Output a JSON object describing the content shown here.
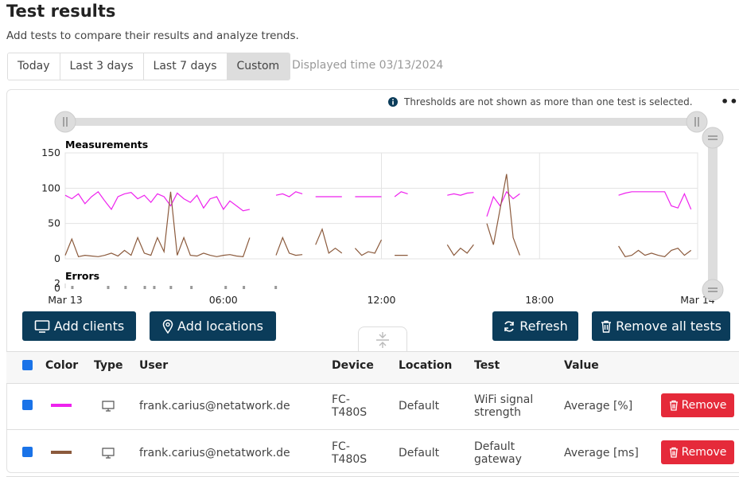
{
  "header": {
    "title": "Test results",
    "subtitle": "Add tests to compare their results and analyze trends."
  },
  "tabs": [
    "Today",
    "Last 3 days",
    "Last 7 days",
    "Custom"
  ],
  "active_tab": 3,
  "displayed_time": "Displayed time 03/13/2024",
  "notice": "Thresholds are not shown as more than one test is selected.",
  "chart_data": [
    {
      "type": "line",
      "title": "Measurements",
      "x": [
        0,
        0.25,
        0.5,
        0.75,
        1,
        1.25,
        1.5,
        1.75,
        2,
        2.25,
        2.5,
        2.75,
        3,
        3.25,
        3.5,
        3.75,
        4,
        4.25,
        4.5,
        4.75,
        5,
        5.25,
        5.5,
        5.75,
        6,
        6.25,
        6.5,
        6.75,
        7,
        7.25,
        7.5,
        7.75,
        8,
        8.25,
        8.5,
        8.75,
        9,
        9.25,
        9.5,
        9.75,
        10,
        10.25,
        10.5,
        10.75,
        11,
        11.25,
        11.5,
        11.75,
        12,
        12.25,
        12.5,
        12.75,
        13,
        13.25,
        13.5,
        13.75,
        14,
        14.25,
        14.5,
        14.75,
        15,
        15.25,
        15.5,
        15.75,
        16,
        16.25,
        16.5,
        16.75,
        17,
        17.25,
        17.5,
        17.75,
        18,
        18.25,
        18.5,
        18.75,
        19,
        19.25,
        19.5,
        19.75,
        20,
        20.25,
        20.5,
        20.75,
        21,
        21.25,
        21.5,
        21.75,
        22,
        22.25,
        22.5,
        22.75,
        23,
        23.25,
        23.5,
        23.75,
        24
      ],
      "series": [
        {
          "name": "WiFi signal strength",
          "color": "#ee22ee",
          "values": [
            90,
            85,
            92,
            78,
            88,
            95,
            82,
            70,
            88,
            92,
            94,
            85,
            90,
            80,
            92,
            88,
            75,
            93,
            85,
            80,
            90,
            72,
            85,
            88,
            70,
            82,
            75,
            68,
            70,
            null,
            null,
            null,
            90,
            92,
            88,
            95,
            92,
            null,
            88,
            88,
            88,
            88,
            88,
            null,
            88,
            88,
            88,
            88,
            88,
            null,
            88,
            95,
            92,
            null,
            null,
            null,
            null,
            null,
            90,
            92,
            90,
            93,
            94,
            null,
            60,
            88,
            75,
            95,
            85,
            92,
            null,
            null,
            null,
            null,
            null,
            null,
            null,
            null,
            null,
            null,
            null,
            null,
            null,
            null,
            90,
            93,
            95,
            95,
            95,
            95,
            95,
            95,
            75,
            72,
            92,
            70,
            null
          ]
        },
        {
          "name": "Default gateway",
          "color": "#8b5a3c",
          "values": [
            5,
            28,
            3,
            5,
            4,
            3,
            5,
            8,
            4,
            12,
            5,
            30,
            8,
            5,
            30,
            10,
            95,
            5,
            30,
            5,
            4,
            8,
            5,
            3,
            5,
            6,
            4,
            3,
            30,
            null,
            null,
            null,
            5,
            30,
            8,
            5,
            6,
            null,
            20,
            42,
            8,
            15,
            8,
            null,
            15,
            5,
            10,
            8,
            27,
            null,
            5,
            5,
            5,
            null,
            null,
            null,
            null,
            null,
            20,
            5,
            15,
            8,
            20,
            null,
            50,
            20,
            70,
            120,
            30,
            5,
            null,
            null,
            null,
            null,
            null,
            null,
            null,
            null,
            null,
            null,
            null,
            null,
            null,
            null,
            18,
            3,
            5,
            12,
            5,
            8,
            5,
            3,
            12,
            15,
            5,
            12,
            null
          ]
        }
      ],
      "xlim": [
        0,
        24
      ],
      "xticks": [
        {
          "value": 0,
          "label": "Mar 13"
        },
        {
          "value": 6,
          "label": "06:00"
        },
        {
          "value": 12,
          "label": "12:00"
        },
        {
          "value": 18,
          "label": "18:00"
        },
        {
          "value": 24,
          "label": "Mar 14"
        }
      ],
      "ylim": [
        0,
        150
      ],
      "yticks": [
        0,
        50,
        100,
        150
      ],
      "grid": true
    },
    {
      "type": "scatter",
      "title": "Errors",
      "color": "#999999",
      "x": [
        0.27,
        1.63,
        2.29,
        3.02,
        3.38,
        4.01,
        4.79,
        6.09,
        6.78,
        7.99
      ],
      "values": [
        0,
        0,
        0,
        0,
        0,
        0,
        0,
        0,
        0,
        0
      ],
      "xlim": [
        0,
        24
      ],
      "ylim": [
        0,
        2
      ],
      "yticks": [
        0,
        2
      ]
    }
  ],
  "buttons": {
    "add_clients": "Add clients",
    "add_locations": "Add locations",
    "refresh": "Refresh",
    "remove_all": "Remove all tests"
  },
  "table": {
    "columns": [
      "Color",
      "Type",
      "User",
      "Device",
      "Location",
      "Test",
      "Value"
    ],
    "rows": [
      {
        "user": "frank.carius@netatwork.de",
        "device": "FC-T480S",
        "location": "Default",
        "test": "WiFi signal strength",
        "value": "Average [%]",
        "action": "Remove"
      },
      {
        "user": "frank.carius@netatwork.de",
        "device": "FC-T480S",
        "location": "Default",
        "test": "Default gateway",
        "value": "Average [ms]",
        "action": "Remove"
      }
    ]
  }
}
